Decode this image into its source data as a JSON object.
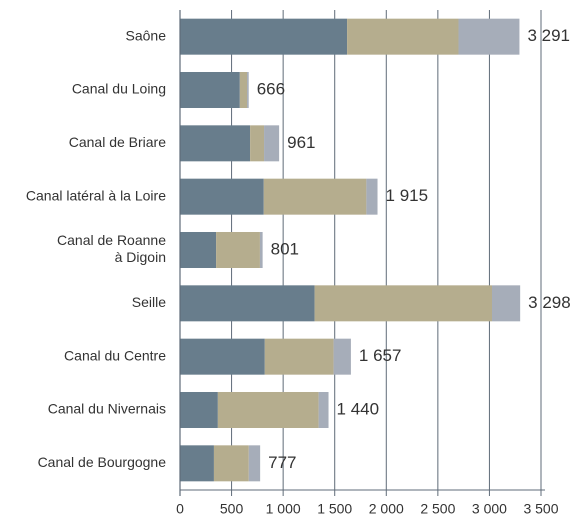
{
  "chart_data": {
    "type": "stacked_barh",
    "categories": [
      "Saône",
      "Canal du Loing",
      "Canal de Briare",
      "Canal latéral à la Loire",
      [
        "Canal de Roanne",
        "à Digoin"
      ],
      "Seille",
      "Canal du Centre",
      "Canal du Nivernais",
      "Canal de Bourgogne"
    ],
    "series": [
      {
        "color": "#687d8c",
        "values": [
          1620,
          580,
          680,
          812,
          350,
          1305,
          822,
          367,
          329
        ]
      },
      {
        "color": "#b5ad8e",
        "values": [
          1080,
          70,
          135,
          995,
          425,
          1720,
          667,
          977,
          338
        ]
      },
      {
        "color": "#a6adb9",
        "values": [
          591,
          16,
          146,
          108,
          26,
          273,
          168,
          96,
          110
        ]
      }
    ],
    "totals": [
      3291,
      666,
      961,
      1915,
      801,
      3298,
      1657,
      1440,
      777
    ],
    "total_labels": [
      "3 291",
      "666",
      "961",
      "1 915",
      "801",
      "3 298",
      "1 657",
      "1 440",
      "777"
    ],
    "xlim": [
      0,
      3500
    ],
    "xticks": [
      0,
      500,
      {
        "value": 1000,
        "label": "1 000"
      },
      {
        "value": 1500,
        "label": "1 500"
      },
      {
        "value": 2000,
        "label": "2 000"
      },
      {
        "value": 2500,
        "label": "2 500"
      },
      {
        "value": 3000,
        "label": "3 000"
      },
      {
        "value": 3500,
        "label": "3 500"
      }
    ],
    "grid": true
  }
}
